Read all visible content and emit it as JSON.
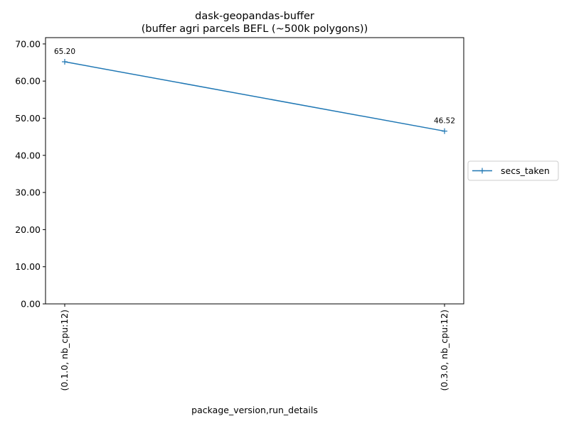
{
  "chart_data": {
    "type": "line",
    "title": "dask-geopandas-buffer",
    "subtitle": "(buffer agri parcels BEFL (~500k polygons))",
    "xlabel": "package_version,run_details",
    "ylabel": "",
    "categories": [
      "(0.1.0, nb_cpu:12)",
      "(0.3.0, nb_cpu:12)"
    ],
    "series": [
      {
        "name": "secs_taken",
        "values": [
          65.2,
          46.52
        ],
        "data_labels": [
          "65.20",
          "46.52"
        ],
        "color": "#1f77b4",
        "marker": "plus"
      }
    ],
    "ylim": [
      0,
      71.7
    ],
    "yticks": [
      0,
      10,
      20,
      30,
      40,
      50,
      60,
      70
    ],
    "ytick_labels": [
      "0.00",
      "10.00",
      "20.00",
      "30.00",
      "40.00",
      "50.00",
      "60.00",
      "70.00"
    ],
    "grid": false,
    "legend_position": "right"
  }
}
